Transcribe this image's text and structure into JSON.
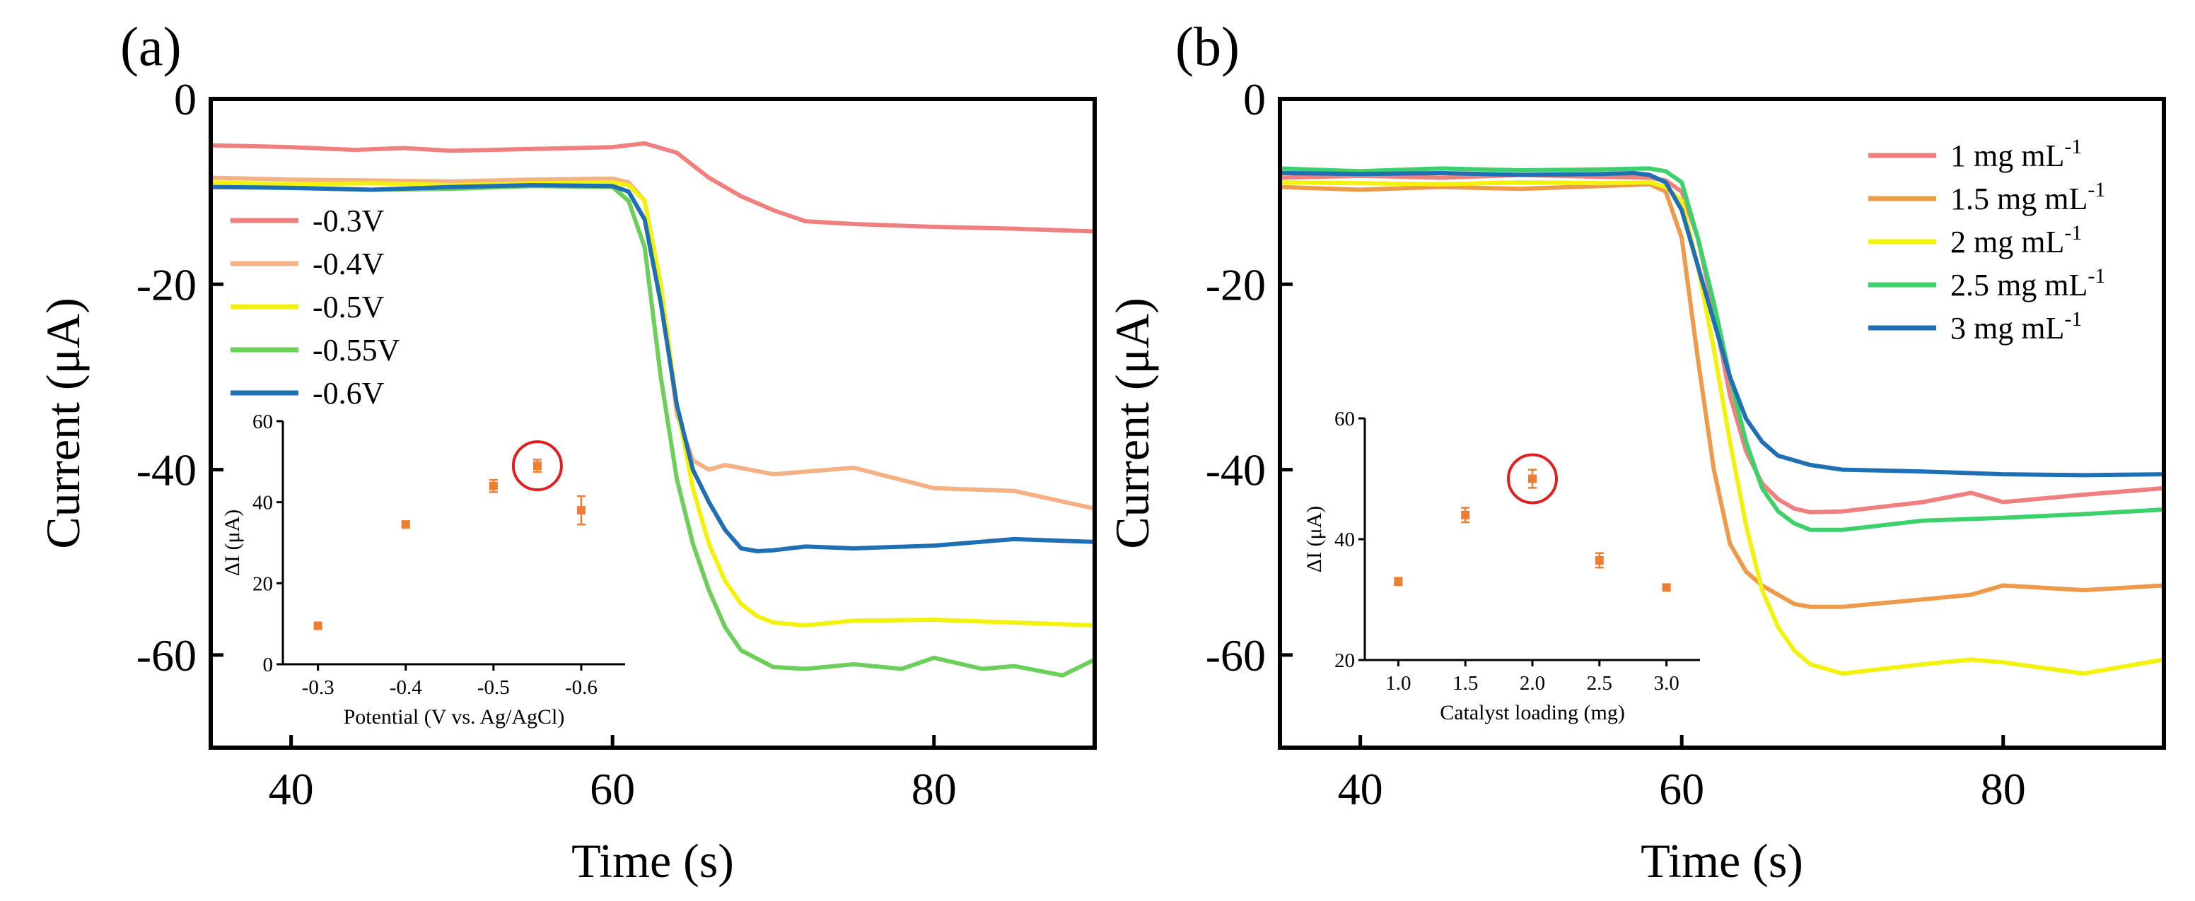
{
  "chart_data": [
    {
      "type": "line",
      "panel_label": "(a)",
      "xlabel": "Time (s)",
      "ylabel": "Current (μA)",
      "xlim": [
        35,
        90
      ],
      "ylim": [
        -70,
        0
      ],
      "xticks": [
        40,
        60,
        80
      ],
      "yticks": [
        0,
        -20,
        -40,
        -60
      ],
      "legend_position": "upper-left",
      "series": [
        {
          "name": "-0.3V",
          "color": "#f08080",
          "x": [
            35,
            40,
            44,
            47,
            50,
            55,
            60,
            62,
            64,
            66,
            68,
            70,
            72,
            75,
            80,
            85,
            90
          ],
          "y": [
            -5,
            -5.2,
            -5.5,
            -5.3,
            -5.6,
            -5.4,
            -5.2,
            -4.8,
            -5.8,
            -8.5,
            -10.5,
            -12,
            -13.2,
            -13.5,
            -13.8,
            -14,
            -14.3
          ]
        },
        {
          "name": "-0.4V",
          "color": "#f4b183",
          "x": [
            35,
            40,
            45,
            50,
            55,
            60,
            61,
            62,
            63,
            64,
            65,
            66,
            67,
            70,
            75,
            80,
            85,
            90
          ],
          "y": [
            -8.5,
            -8.7,
            -8.8,
            -8.9,
            -8.7,
            -8.6,
            -9,
            -11,
            -20,
            -34,
            -39,
            -40,
            -39.5,
            -40.5,
            -39.8,
            -42,
            -42.3,
            -44.2
          ]
        },
        {
          "name": "-0.5V",
          "color": "#f2f20a",
          "x": [
            35,
            40,
            45,
            50,
            55,
            60,
            61,
            62,
            63,
            64,
            65,
            66,
            67,
            68,
            69,
            70,
            72,
            75,
            80,
            85,
            90
          ],
          "y": [
            -9,
            -9.2,
            -9.1,
            -9.3,
            -9.1,
            -9,
            -9.3,
            -11,
            -20,
            -33,
            -42,
            -48,
            -52,
            -54.5,
            -55.8,
            -56.5,
            -56.8,
            -56.3,
            -56.2,
            -56.5,
            -56.8
          ]
        },
        {
          "name": "-0.55V",
          "color": "#6ccf5a",
          "x": [
            35,
            40,
            45,
            50,
            55,
            60,
            61,
            62,
            63,
            64,
            65,
            66,
            67,
            68,
            70,
            72,
            75,
            78,
            80,
            83,
            85,
            88,
            90
          ],
          "y": [
            -9.5,
            -9.6,
            -9.8,
            -9.7,
            -9.4,
            -9.5,
            -11,
            -16,
            -30,
            -41,
            -48,
            -53,
            -57,
            -59.5,
            -61.3,
            -61.5,
            -61,
            -61.5,
            -60.3,
            -61.5,
            -61.2,
            -62.2,
            -60.5
          ]
        },
        {
          "name": "-0.6V",
          "color": "#1f6fb5",
          "x": [
            35,
            40,
            45,
            50,
            55,
            60,
            61,
            62,
            63,
            64,
            65,
            66,
            67,
            68,
            69,
            70,
            72,
            75,
            80,
            85,
            90
          ],
          "y": [
            -9.5,
            -9.6,
            -9.8,
            -9.5,
            -9.3,
            -9.4,
            -10,
            -13,
            -22,
            -33,
            -40,
            -43.5,
            -46.5,
            -48.5,
            -48.8,
            -48.7,
            -48.3,
            -48.5,
            -48.2,
            -47.5,
            -47.8
          ]
        }
      ],
      "inset": {
        "xlabel": "Potential (V vs. Ag/AgCl)",
        "ylabel": "ΔI (μA)",
        "xlim": [
          -0.26,
          -0.65
        ],
        "ylim": [
          0,
          60
        ],
        "xticks": [
          "-0.3",
          "-0.4",
          "-0.5",
          "-0.6"
        ],
        "yticks": [
          "0",
          "20",
          "40",
          "60"
        ],
        "points": [
          {
            "x": -0.3,
            "y": 9.5,
            "err": 0.5
          },
          {
            "x": -0.4,
            "y": 34.5,
            "err": 0.8
          },
          {
            "x": -0.5,
            "y": 44,
            "err": 1.5
          },
          {
            "x": -0.55,
            "y": 49,
            "err": 1.5
          },
          {
            "x": -0.6,
            "y": 38,
            "err": 3.5
          }
        ],
        "highlight_x": -0.55,
        "marker_color": "#ed7d31",
        "highlight_color": "#e02020"
      }
    },
    {
      "type": "line",
      "panel_label": "(b)",
      "xlabel": "Time (s)",
      "ylabel": "Current (μA)",
      "xlim": [
        35,
        90
      ],
      "ylim": [
        -70,
        0
      ],
      "xticks": [
        40,
        60,
        80
      ],
      "yticks": [
        0,
        -20,
        -40,
        -60
      ],
      "legend_position": "upper-right",
      "series": [
        {
          "name": "1 mg mL",
          "sup": "-1",
          "color": "#f08080",
          "x": [
            35,
            40,
            45,
            50,
            55,
            58,
            59,
            60,
            61,
            62,
            63,
            64,
            65,
            66,
            67,
            68,
            70,
            75,
            78,
            80,
            85,
            90
          ],
          "y": [
            -8.5,
            -8.3,
            -8.5,
            -8.2,
            -8.4,
            -8.5,
            -8.8,
            -10,
            -15,
            -23,
            -32,
            -38,
            -41.5,
            -43.2,
            -44.2,
            -44.6,
            -44.5,
            -43.5,
            -42.5,
            -43.5,
            -42.7,
            -42
          ]
        },
        {
          "name": "1.5 mg mL",
          "sup": "-1",
          "color": "#ed9a4a",
          "x": [
            35,
            40,
            45,
            50,
            55,
            58,
            59,
            60,
            61,
            62,
            63,
            64,
            65,
            66,
            67,
            68,
            70,
            75,
            78,
            80,
            85,
            90
          ],
          "y": [
            -9.5,
            -9.8,
            -9.5,
            -9.7,
            -9.4,
            -9.2,
            -10,
            -15,
            -28,
            -40,
            -48,
            -51,
            -52.5,
            -53.5,
            -54.5,
            -54.8,
            -54.8,
            -54,
            -53.5,
            -52.5,
            -53,
            -52.5
          ]
        },
        {
          "name": "2 mg mL",
          "sup": "-1",
          "color": "#f2f20a",
          "x": [
            35,
            40,
            45,
            50,
            55,
            58,
            59,
            60,
            61,
            62,
            63,
            64,
            65,
            66,
            67,
            68,
            70,
            75,
            78,
            80,
            85,
            90
          ],
          "y": [
            -9,
            -9.1,
            -9.2,
            -9,
            -9.1,
            -9,
            -9.5,
            -11,
            -18,
            -27,
            -37,
            -46,
            -53,
            -57,
            -59.5,
            -61,
            -62,
            -61,
            -60.5,
            -60.8,
            -62,
            -60.5
          ]
        },
        {
          "name": "2.5 mg mL",
          "sup": "-1",
          "color": "#3dd16c",
          "x": [
            35,
            40,
            45,
            50,
            55,
            58,
            59,
            60,
            61,
            62,
            63,
            64,
            65,
            66,
            67,
            68,
            70,
            75,
            80,
            85,
            90
          ],
          "y": [
            -7.5,
            -7.8,
            -7.5,
            -7.7,
            -7.6,
            -7.5,
            -7.8,
            -9,
            -15,
            -22,
            -30,
            -37,
            -42,
            -44.5,
            -45.8,
            -46.5,
            -46.5,
            -45.5,
            -45.2,
            -44.8,
            -44.3
          ]
        },
        {
          "name": "3 mg mL",
          "sup": "-1",
          "color": "#1f6fb5",
          "x": [
            35,
            40,
            45,
            50,
            55,
            57,
            58,
            59,
            60,
            61,
            62,
            63,
            64,
            65,
            66,
            68,
            70,
            75,
            80,
            85,
            90
          ],
          "y": [
            -8,
            -8.1,
            -8,
            -8.2,
            -8.1,
            -8,
            -8.2,
            -9,
            -12,
            -18,
            -24,
            -30,
            -34.5,
            -37,
            -38.5,
            -39.5,
            -40,
            -40.2,
            -40.5,
            -40.6,
            -40.5
          ]
        }
      ],
      "inset": {
        "xlabel": "Catalyst loading (mg)",
        "ylabel": "ΔI (μA)",
        "xlim": [
          0.75,
          3.25
        ],
        "ylim": [
          20,
          60
        ],
        "xticks": [
          "1.0",
          "1.5",
          "2.0",
          "2.5",
          "3.0"
        ],
        "yticks": [
          "20",
          "40",
          "60"
        ],
        "points": [
          {
            "x": 1.0,
            "y": 33,
            "err": 0.6
          },
          {
            "x": 1.5,
            "y": 44,
            "err": 1.2
          },
          {
            "x": 2.0,
            "y": 50,
            "err": 1.5
          },
          {
            "x": 2.5,
            "y": 36.5,
            "err": 1.2
          },
          {
            "x": 3.0,
            "y": 32,
            "err": 0.5
          }
        ],
        "highlight_x": 2.0,
        "marker_color": "#ed7d31",
        "highlight_color": "#e02020"
      }
    }
  ]
}
